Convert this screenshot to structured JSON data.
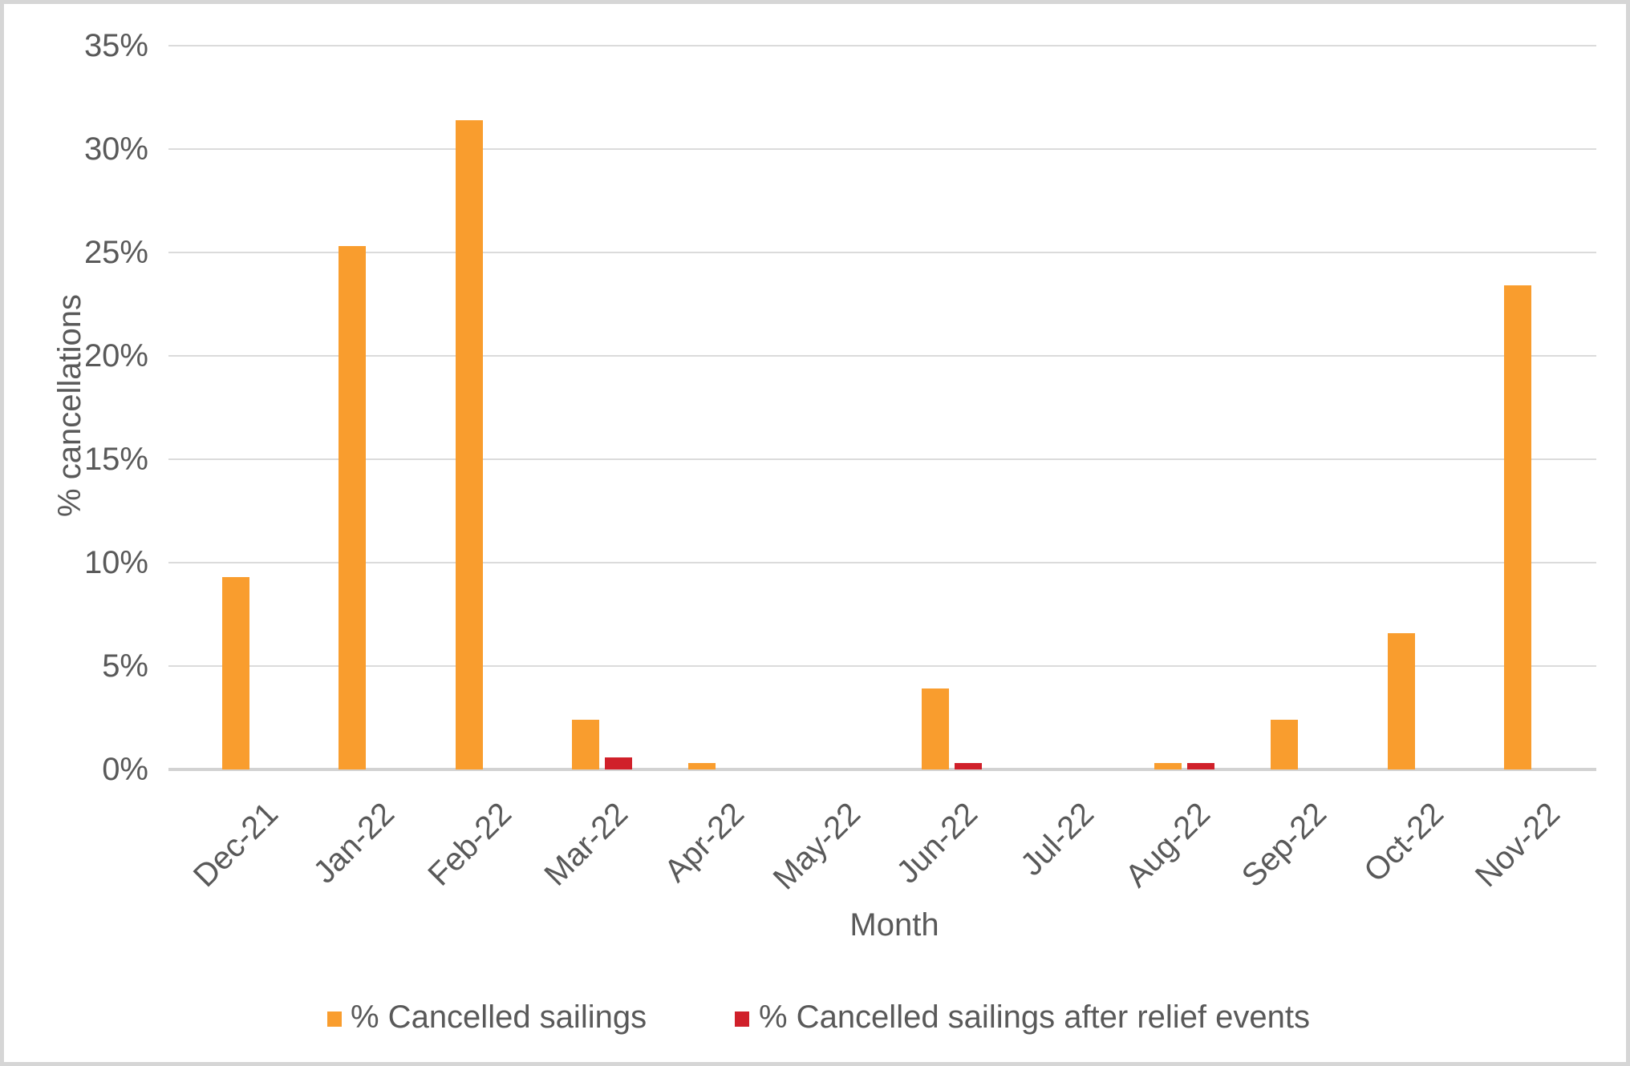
{
  "chart_data": {
    "type": "bar",
    "title": "",
    "xlabel": "Month",
    "ylabel": "% cancellations",
    "categories": [
      "Dec-21",
      "Jan-22",
      "Feb-22",
      "Mar-22",
      "Apr-22",
      "May-22",
      "Jun-22",
      "Jul-22",
      "Aug-22",
      "Sep-22",
      "Oct-22",
      "Nov-22"
    ],
    "series": [
      {
        "name": "% Cancelled sailings",
        "color": "#f99d2e",
        "values": [
          9.3,
          25.3,
          31.4,
          2.4,
          0.3,
          0,
          3.9,
          0,
          0.3,
          2.4,
          6.6,
          23.4
        ]
      },
      {
        "name": "% Cancelled sailings after relief events",
        "color": "#d0202a",
        "values": [
          0,
          0,
          0,
          0.6,
          0,
          0,
          0.3,
          0,
          0.3,
          0,
          0,
          0
        ]
      }
    ],
    "ylim": [
      0,
      35
    ],
    "ytick_step": 5,
    "ytick_labels": [
      "0%",
      "5%",
      "10%",
      "15%",
      "20%",
      "25%",
      "30%",
      "35%"
    ],
    "grid": true,
    "legend_position": "bottom"
  },
  "colors": {
    "gridline": "#dbdbdb",
    "axis_line": "#d2d2d2",
    "text": "#595959",
    "frame_border": "#d6d6d6"
  }
}
